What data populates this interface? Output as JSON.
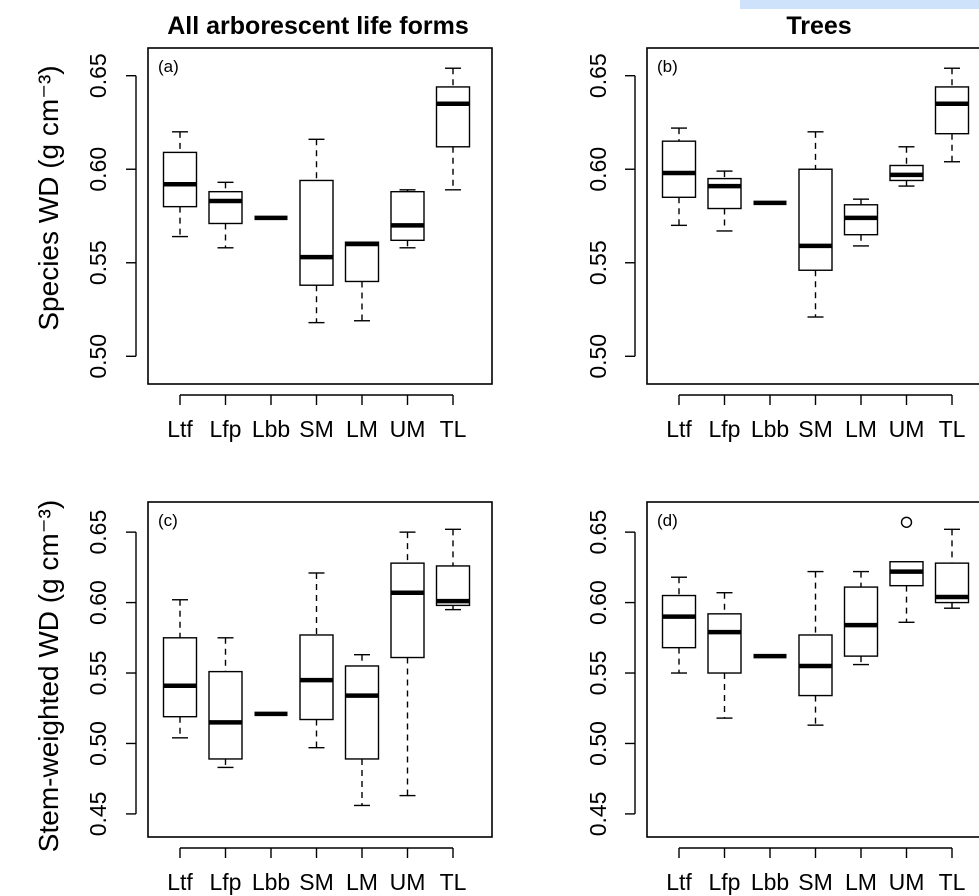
{
  "titles": {
    "left": "All arborescent life forms",
    "right": "Trees"
  },
  "row_labels": {
    "top": "Species WD (g cm⁻³)",
    "bottom": "Stem-weighted WD (g cm⁻³)"
  },
  "colors": {
    "accent_strip": "#cfe2fb",
    "ink": "#000000"
  },
  "chart_data": [
    {
      "type": "boxplot",
      "panel_label": "(a)",
      "title": "All arborescent life forms",
      "ylabel": "Species WD (g cm⁻³)",
      "ylim": [
        0.49,
        0.66
      ],
      "yticks": [
        "0.50",
        "0.55",
        "0.60",
        "0.65"
      ],
      "categories": [
        "Ltf",
        "Lfp",
        "Lbb",
        "SM",
        "LM",
        "UM",
        "TL"
      ],
      "boxes": [
        {
          "whisker_low": 0.564,
          "q1": 0.58,
          "median": 0.592,
          "q3": 0.609,
          "whisker_high": 0.62
        },
        {
          "whisker_low": 0.558,
          "q1": 0.571,
          "median": 0.583,
          "q3": 0.588,
          "whisker_high": 0.593
        },
        {
          "whisker_low": 0.574,
          "q1": 0.574,
          "median": 0.574,
          "q3": 0.574,
          "whisker_high": 0.574
        },
        {
          "whisker_low": 0.518,
          "q1": 0.538,
          "median": 0.553,
          "q3": 0.594,
          "whisker_high": 0.616
        },
        {
          "whisker_low": 0.519,
          "q1": 0.54,
          "median": 0.56,
          "q3": 0.561,
          "whisker_high": 0.561
        },
        {
          "whisker_low": 0.558,
          "q1": 0.562,
          "median": 0.57,
          "q3": 0.588,
          "whisker_high": 0.589
        },
        {
          "whisker_low": 0.589,
          "q1": 0.612,
          "median": 0.635,
          "q3": 0.644,
          "whisker_high": 0.654
        }
      ]
    },
    {
      "type": "boxplot",
      "panel_label": "(b)",
      "title": "Trees",
      "ylim": [
        0.49,
        0.66
      ],
      "yticks": [
        "0.50",
        "0.55",
        "0.60",
        "0.65"
      ],
      "categories": [
        "Ltf",
        "Lfp",
        "Lbb",
        "SM",
        "LM",
        "UM",
        "TL"
      ],
      "boxes": [
        {
          "whisker_low": 0.57,
          "q1": 0.585,
          "median": 0.598,
          "q3": 0.615,
          "whisker_high": 0.622
        },
        {
          "whisker_low": 0.567,
          "q1": 0.579,
          "median": 0.591,
          "q3": 0.595,
          "whisker_high": 0.599
        },
        {
          "whisker_low": 0.582,
          "q1": 0.582,
          "median": 0.582,
          "q3": 0.582,
          "whisker_high": 0.582
        },
        {
          "whisker_low": 0.521,
          "q1": 0.546,
          "median": 0.559,
          "q3": 0.6,
          "whisker_high": 0.62
        },
        {
          "whisker_low": 0.559,
          "q1": 0.565,
          "median": 0.574,
          "q3": 0.581,
          "whisker_high": 0.584
        },
        {
          "whisker_low": 0.591,
          "q1": 0.594,
          "median": 0.597,
          "q3": 0.602,
          "whisker_high": 0.612
        },
        {
          "whisker_low": 0.604,
          "q1": 0.619,
          "median": 0.635,
          "q3": 0.644,
          "whisker_high": 0.654
        }
      ]
    },
    {
      "type": "boxplot",
      "panel_label": "(c)",
      "ylabel": "Stem-weighted WD (g cm⁻³)",
      "ylim": [
        0.44,
        0.665
      ],
      "yticks": [
        "0.45",
        "0.50",
        "0.55",
        "0.60",
        "0.65"
      ],
      "categories": [
        "Ltf",
        "Lfp",
        "Lbb",
        "SM",
        "LM",
        "UM",
        "TL"
      ],
      "boxes": [
        {
          "whisker_low": 0.504,
          "q1": 0.519,
          "median": 0.541,
          "q3": 0.575,
          "whisker_high": 0.602
        },
        {
          "whisker_low": 0.483,
          "q1": 0.489,
          "median": 0.515,
          "q3": 0.551,
          "whisker_high": 0.575
        },
        {
          "whisker_low": 0.521,
          "q1": 0.521,
          "median": 0.521,
          "q3": 0.521,
          "whisker_high": 0.521
        },
        {
          "whisker_low": 0.497,
          "q1": 0.517,
          "median": 0.545,
          "q3": 0.577,
          "whisker_high": 0.621
        },
        {
          "whisker_low": 0.456,
          "q1": 0.489,
          "median": 0.534,
          "q3": 0.555,
          "whisker_high": 0.563
        },
        {
          "whisker_low": 0.463,
          "q1": 0.561,
          "median": 0.607,
          "q3": 0.628,
          "whisker_high": 0.65
        },
        {
          "whisker_low": 0.595,
          "q1": 0.598,
          "median": 0.601,
          "q3": 0.626,
          "whisker_high": 0.652
        }
      ]
    },
    {
      "type": "boxplot",
      "panel_label": "(d)",
      "ylim": [
        0.44,
        0.665
      ],
      "yticks": [
        "0.45",
        "0.50",
        "0.55",
        "0.60",
        "0.65"
      ],
      "categories": [
        "Ltf",
        "Lfp",
        "Lbb",
        "SM",
        "LM",
        "UM",
        "TL"
      ],
      "boxes": [
        {
          "whisker_low": 0.55,
          "q1": 0.568,
          "median": 0.59,
          "q3": 0.605,
          "whisker_high": 0.618
        },
        {
          "whisker_low": 0.518,
          "q1": 0.55,
          "median": 0.579,
          "q3": 0.592,
          "whisker_high": 0.607
        },
        {
          "whisker_low": 0.562,
          "q1": 0.562,
          "median": 0.562,
          "q3": 0.562,
          "whisker_high": 0.562
        },
        {
          "whisker_low": 0.513,
          "q1": 0.534,
          "median": 0.555,
          "q3": 0.577,
          "whisker_high": 0.622
        },
        {
          "whisker_low": 0.556,
          "q1": 0.562,
          "median": 0.584,
          "q3": 0.611,
          "whisker_high": 0.622
        },
        {
          "whisker_low": 0.586,
          "q1": 0.612,
          "median": 0.622,
          "q3": 0.629,
          "whisker_high": 0.629,
          "outliers": [
            0.657
          ]
        },
        {
          "whisker_low": 0.596,
          "q1": 0.6,
          "median": 0.604,
          "q3": 0.628,
          "whisker_high": 0.652
        }
      ]
    }
  ]
}
